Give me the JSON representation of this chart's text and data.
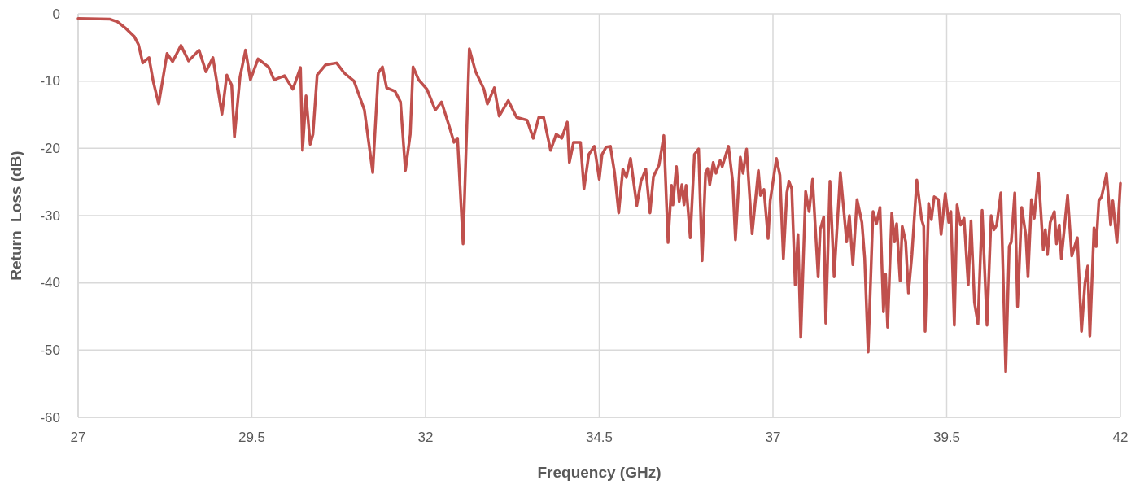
{
  "chart_data": {
    "type": "line",
    "xlabel": "Frequency (GHz)",
    "ylabel": "Return  Loss (dB)",
    "xlim": [
      27,
      42
    ],
    "xticks": [
      27,
      29.5,
      32,
      34.5,
      37,
      39.5,
      42
    ],
    "ylim": [
      -60,
      0
    ],
    "yticks": [
      -60,
      -50,
      -40,
      -30,
      -20,
      -10,
      0
    ],
    "grid": true,
    "marker": "none",
    "line_style": "solid",
    "series": [
      {
        "color": "#c0504d",
        "x": [
          27,
          27.46,
          27.57,
          27.69,
          27.81,
          27.87,
          27.93,
          28.02,
          28.08,
          28.16,
          28.28,
          28.36,
          28.48,
          28.59,
          28.74,
          28.84,
          28.94,
          29.07,
          29.14,
          29.21,
          29.25,
          29.33,
          29.41,
          29.48,
          29.59,
          29.74,
          29.82,
          29.97,
          30.09,
          30.2,
          30.23,
          30.28,
          30.34,
          30.38,
          30.44,
          30.56,
          30.72,
          30.83,
          30.97,
          31.12,
          31.24,
          31.32,
          31.38,
          31.44,
          31.56,
          31.64,
          31.71,
          31.78,
          31.82,
          31.9,
          32.02,
          32.14,
          32.23,
          32.34,
          32.41,
          32.46,
          32.54,
          32.63,
          32.72,
          32.84,
          32.89,
          32.99,
          33.06,
          33.19,
          33.31,
          33.46,
          33.55,
          33.63,
          33.7,
          33.8,
          33.88,
          33.96,
          34.04,
          34.07,
          34.13,
          34.23,
          34.28,
          34.35,
          34.43,
          34.5,
          34.54,
          34.6,
          34.66,
          34.72,
          34.78,
          34.84,
          34.89,
          34.95,
          35.04,
          35.1,
          35.17,
          35.23,
          35.28,
          35.36,
          35.43,
          35.49,
          35.54,
          35.56,
          35.61,
          35.65,
          35.69,
          35.72,
          35.75,
          35.81,
          35.87,
          35.93,
          35.98,
          36.03,
          36.06,
          36.09,
          36.14,
          36.18,
          36.24,
          36.27,
          36.36,
          36.42,
          36.46,
          36.53,
          36.57,
          36.62,
          36.7,
          36.79,
          36.82,
          36.87,
          36.93,
          36.96,
          37.05,
          37.1,
          37.15,
          37.2,
          37.23,
          37.27,
          37.32,
          37.36,
          37.4,
          37.47,
          37.52,
          37.57,
          37.65,
          37.68,
          37.73,
          37.76,
          37.82,
          37.88,
          37.97,
          38.06,
          38.1,
          38.15,
          38.21,
          38.28,
          38.32,
          38.37,
          38.44,
          38.49,
          38.54,
          38.59,
          38.62,
          38.65,
          38.71,
          38.75,
          38.78,
          38.83,
          38.86,
          38.91,
          38.95,
          39,
          39.07,
          39.14,
          39.17,
          39.19,
          39.24,
          39.28,
          39.32,
          39.38,
          39.42,
          39.48,
          39.53,
          39.56,
          39.61,
          39.65,
          39.7,
          39.75,
          39.81,
          39.85,
          39.9,
          39.95,
          40.01,
          40.08,
          40.14,
          40.18,
          40.22,
          40.28,
          40.35,
          40.4,
          40.43,
          40.48,
          40.52,
          40.58,
          40.64,
          40.67,
          40.72,
          40.76,
          40.82,
          40.89,
          40.92,
          40.95,
          40.99,
          41.05,
          41.08,
          41.12,
          41.15,
          41.24,
          41.3,
          41.38,
          41.44,
          41.49,
          41.53,
          41.56,
          41.62,
          41.65,
          41.69,
          41.73,
          41.8,
          41.86,
          41.89,
          41.95,
          42
        ],
        "values": [
          -0.7,
          -0.8,
          -1.2,
          -2.2,
          -3.4,
          -4.6,
          -7.3,
          -6.5,
          -10,
          -13.4,
          -5.9,
          -7.1,
          -4.7,
          -7,
          -5.4,
          -8.6,
          -6.5,
          -14.9,
          -9.1,
          -10.6,
          -18.3,
          -9.4,
          -5.4,
          -9.8,
          -6.7,
          -7.9,
          -9.8,
          -9.2,
          -11.2,
          -8,
          -20.3,
          -12.2,
          -19.4,
          -17.9,
          -9.1,
          -7.6,
          -7.3,
          -8.8,
          -10,
          -14.3,
          -23.6,
          -8.8,
          -7.9,
          -11,
          -11.5,
          -13.1,
          -23.3,
          -17.9,
          -7.9,
          -9.8,
          -11.2,
          -14.3,
          -13.1,
          -16.7,
          -19.1,
          -18.5,
          -34.2,
          -5.2,
          -8.6,
          -11.2,
          -13.4,
          -11,
          -15.2,
          -12.9,
          -15.4,
          -15.8,
          -18.5,
          -15.4,
          -15.4,
          -20.3,
          -17.9,
          -18.5,
          -16.1,
          -22.1,
          -19.1,
          -19.1,
          -26,
          -20.9,
          -19.7,
          -24.6,
          -20.9,
          -19.8,
          -19.7,
          -23.6,
          -29.6,
          -23.1,
          -24.3,
          -21.5,
          -28.5,
          -24.9,
          -23.1,
          -29.6,
          -24.2,
          -22.5,
          -18.1,
          -34,
          -25.5,
          -28.4,
          -22.7,
          -27.9,
          -25.4,
          -28.4,
          -25.5,
          -33.3,
          -20.9,
          -20.1,
          -36.7,
          -23.7,
          -23,
          -25.4,
          -22.1,
          -23.7,
          -21.8,
          -22.7,
          -19.7,
          -24.9,
          -33.6,
          -21.3,
          -23.7,
          -20.1,
          -32.7,
          -23.3,
          -27,
          -26.1,
          -33.4,
          -27.8,
          -21.5,
          -24,
          -36.4,
          -26.6,
          -24.9,
          -26,
          -40.3,
          -32.8,
          -48.1,
          -26.4,
          -29.4,
          -24.6,
          -39.1,
          -32.1,
          -30.2,
          -46,
          -24.9,
          -39.1,
          -23.6,
          -33.9,
          -30,
          -37.3,
          -27.6,
          -31,
          -36.3,
          -50.3,
          -29.4,
          -31.2,
          -28.8,
          -44.3,
          -38.7,
          -46.6,
          -29.6,
          -33.9,
          -31.2,
          -39.7,
          -31.6,
          -33.9,
          -41.5,
          -35.8,
          -24.7,
          -30.6,
          -31.6,
          -47.2,
          -28.2,
          -30.6,
          -27.2,
          -27.6,
          -32.8,
          -26.7,
          -31,
          -29.4,
          -46.3,
          -28.4,
          -31.4,
          -30.4,
          -40.3,
          -30.8,
          -42.9,
          -46.1,
          -29.2,
          -46.3,
          -30,
          -32.1,
          -31.4,
          -26.6,
          -53.2,
          -34.6,
          -33.9,
          -26.6,
          -43.5,
          -28.8,
          -33,
          -39.1,
          -27.6,
          -30.4,
          -23.7,
          -35.1,
          -32.1,
          -35.8,
          -31,
          -29.4,
          -34.2,
          -31.4,
          -36.4,
          -27,
          -36,
          -33.3,
          -47.2,
          -40,
          -37.5,
          -47.9,
          -31.8,
          -34.6,
          -27.8,
          -27.2,
          -23.8,
          -31.4,
          -27.8,
          -34,
          -25.2
        ]
      }
    ]
  }
}
